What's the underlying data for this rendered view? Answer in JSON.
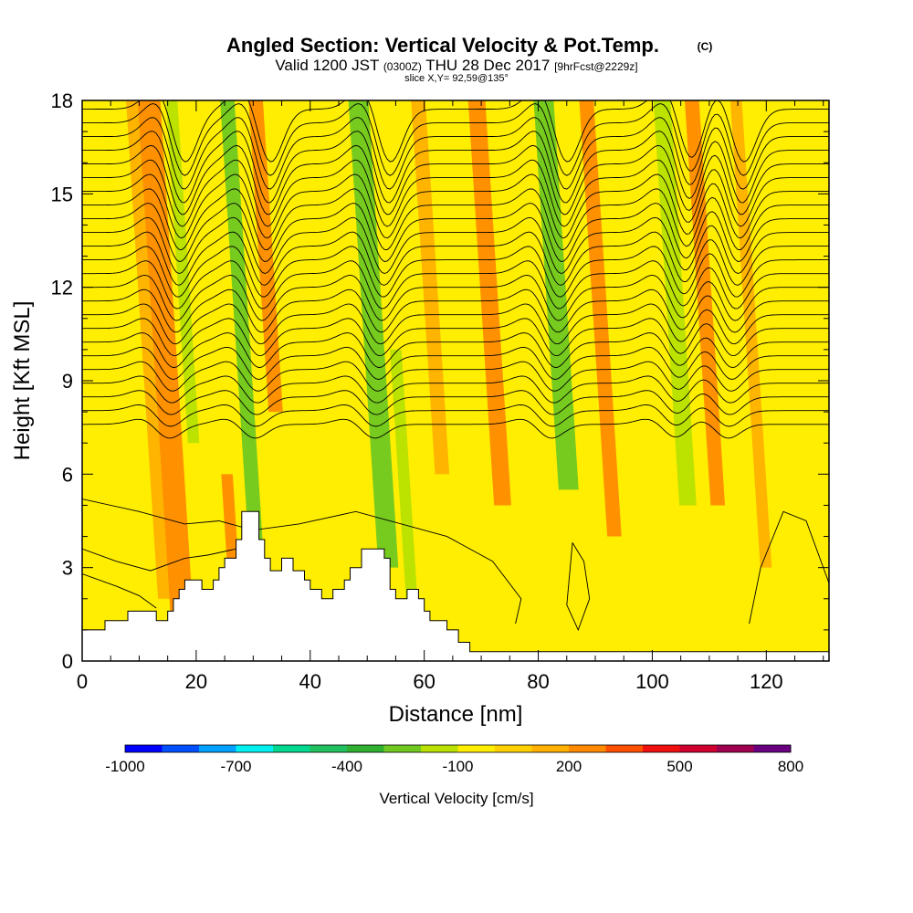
{
  "chart_data": {
    "type": "heatmap",
    "title": "Angled Section: Vertical Velocity & Pot.Temp.",
    "title_mark": "(C)",
    "subtitle": {
      "valid_prefix": "Valid 1200 JST",
      "utc": "(0300Z)",
      "date": "THU 28 Dec 2017",
      "forecast": "[9hrFcst@2229z]"
    },
    "slice_label": "slice X,Y= 92,59@135°",
    "xlabel": "Distance [nm]",
    "ylabel": "Height [Kft MSL]",
    "xlim": [
      0,
      131
    ],
    "ylim": [
      0,
      18
    ],
    "x_ticks": [
      0,
      20,
      40,
      60,
      80,
      100,
      120
    ],
    "y_ticks": [
      0,
      3,
      6,
      9,
      12,
      15,
      18
    ],
    "colorbar": {
      "label": "Vertical Velocity [cm/s]",
      "tick_labels": [
        "-1000",
        "-700",
        "-400",
        "-100",
        "200",
        "500",
        "800"
      ],
      "colors": [
        "#0000ff",
        "#0050ff",
        "#00a0ff",
        "#00f0f0",
        "#00d890",
        "#20c060",
        "#30b030",
        "#70c820",
        "#b8e000",
        "#ffee00",
        "#ffd000",
        "#ffb000",
        "#ff8a00",
        "#ff5000",
        "#f01010",
        "#d00030",
        "#a00050",
        "#6a0080"
      ]
    },
    "terrain_kft": [
      [
        0,
        1.0
      ],
      [
        4,
        1.0
      ],
      [
        4,
        1.3
      ],
      [
        8,
        1.3
      ],
      [
        8,
        1.6
      ],
      [
        13,
        1.6
      ],
      [
        13,
        1.3
      ],
      [
        15,
        1.3
      ],
      [
        15,
        1.6
      ],
      [
        16,
        1.6
      ],
      [
        16,
        2.0
      ],
      [
        17,
        2.0
      ],
      [
        17,
        2.3
      ],
      [
        18,
        2.3
      ],
      [
        18,
        2.6
      ],
      [
        21,
        2.6
      ],
      [
        21,
        2.3
      ],
      [
        23,
        2.3
      ],
      [
        23,
        2.6
      ],
      [
        24,
        2.6
      ],
      [
        24,
        3.0
      ],
      [
        25,
        3.0
      ],
      [
        25,
        3.3
      ],
      [
        27,
        3.3
      ],
      [
        27,
        3.9
      ],
      [
        28,
        3.9
      ],
      [
        28,
        4.8
      ],
      [
        31,
        4.8
      ],
      [
        31,
        3.9
      ],
      [
        32,
        3.9
      ],
      [
        32,
        3.3
      ],
      [
        33,
        3.3
      ],
      [
        33,
        2.9
      ],
      [
        35,
        2.9
      ],
      [
        35,
        3.3
      ],
      [
        37,
        3.3
      ],
      [
        37,
        2.9
      ],
      [
        39,
        2.9
      ],
      [
        39,
        2.6
      ],
      [
        40,
        2.6
      ],
      [
        40,
        2.3
      ],
      [
        42,
        2.3
      ],
      [
        42,
        2.0
      ],
      [
        44,
        2.0
      ],
      [
        44,
        2.3
      ],
      [
        46,
        2.3
      ],
      [
        46,
        2.6
      ],
      [
        47,
        2.6
      ],
      [
        47,
        3.0
      ],
      [
        49,
        3.0
      ],
      [
        49,
        3.6
      ],
      [
        53,
        3.6
      ],
      [
        53,
        3.3
      ],
      [
        54,
        3.3
      ],
      [
        54,
        2.3
      ],
      [
        55,
        2.3
      ],
      [
        55,
        2.0
      ],
      [
        57,
        2.0
      ],
      [
        57,
        2.3
      ],
      [
        59,
        2.3
      ],
      [
        59,
        2.0
      ],
      [
        60,
        2.0
      ],
      [
        60,
        1.6
      ],
      [
        61,
        1.6
      ],
      [
        61,
        1.3
      ],
      [
        64,
        1.3
      ],
      [
        64,
        1.0
      ],
      [
        66,
        1.0
      ],
      [
        66,
        0.6
      ],
      [
        68,
        0.6
      ],
      [
        68,
        0.3
      ],
      [
        131,
        0.3
      ]
    ],
    "vertical_velocity_bands": [
      {
        "x": 16,
        "w": 4,
        "cat": 12,
        "y0": 1.5,
        "y1": 18
      },
      {
        "x": 14,
        "w": 2,
        "cat": 11,
        "y0": 2,
        "y1": 18
      },
      {
        "x": 21,
        "w": 2,
        "cat": 8,
        "y0": 7,
        "y1": 18
      },
      {
        "x": 26.5,
        "w": 2,
        "cat": 12,
        "y0": 3,
        "y1": 6
      },
      {
        "x": 30.5,
        "w": 2.5,
        "cat": 7,
        "y0": 3.5,
        "y1": 18
      },
      {
        "x": 35.5,
        "w": 2.5,
        "cat": 12,
        "y0": 8,
        "y1": 18
      },
      {
        "x": 53,
        "w": 3.5,
        "cat": 7,
        "y0": 3,
        "y1": 18
      },
      {
        "x": 57.5,
        "w": 2,
        "cat": 8,
        "y0": 2,
        "y1": 10
      },
      {
        "x": 64,
        "w": 2.5,
        "cat": 11,
        "y0": 6,
        "y1": 18
      },
      {
        "x": 74,
        "w": 3,
        "cat": 12,
        "y0": 5,
        "y1": 18
      },
      {
        "x": 85.5,
        "w": 3.5,
        "cat": 7,
        "y0": 5.5,
        "y1": 18
      },
      {
        "x": 93.5,
        "w": 2.5,
        "cat": 12,
        "y0": 4,
        "y1": 18
      },
      {
        "x": 106.5,
        "w": 3,
        "cat": 8,
        "y0": 5,
        "y1": 18
      },
      {
        "x": 112,
        "w": 2.5,
        "cat": 12,
        "y0": 5,
        "y1": 18
      },
      {
        "x": 120,
        "w": 2,
        "cat": 11,
        "y0": 3,
        "y1": 18
      }
    ],
    "wave_ridges_x": [
      15,
      30,
      51,
      82,
      104,
      113
    ],
    "contours": {
      "count": 24,
      "base_kft": 7.6,
      "spacing_kft": 0.44
    },
    "low_contours": [
      {
        "points": [
          [
            0,
            5.2
          ],
          [
            10,
            4.8
          ],
          [
            18,
            4.4
          ],
          [
            24,
            4.5
          ],
          [
            30,
            4.2
          ],
          [
            38,
            4.4
          ],
          [
            48,
            4.8
          ],
          [
            56,
            4.4
          ],
          [
            64,
            4.0
          ],
          [
            72,
            3.2
          ],
          [
            77,
            2.0
          ],
          [
            76,
            1.2
          ]
        ]
      },
      {
        "points": [
          [
            0,
            3.6
          ],
          [
            6,
            3.2
          ],
          [
            12,
            2.9
          ],
          [
            18,
            3.3
          ],
          [
            22,
            3.4
          ],
          [
            27,
            3.6
          ]
        ]
      },
      {
        "points": [
          [
            0,
            2.8
          ],
          [
            6,
            2.4
          ],
          [
            10,
            2.1
          ],
          [
            13,
            1.7
          ]
        ]
      },
      {
        "points": [
          [
            86,
            3.8
          ],
          [
            88,
            3.2
          ],
          [
            89,
            2.0
          ],
          [
            87,
            1.0
          ],
          [
            85,
            1.8
          ],
          [
            86,
            3.8
          ]
        ]
      },
      {
        "points": [
          [
            117,
            1.2
          ],
          [
            119,
            3.0
          ],
          [
            123,
            4.8
          ],
          [
            127,
            4.5
          ],
          [
            131,
            2.5
          ],
          [
            131,
            1.0
          ]
        ]
      }
    ]
  }
}
